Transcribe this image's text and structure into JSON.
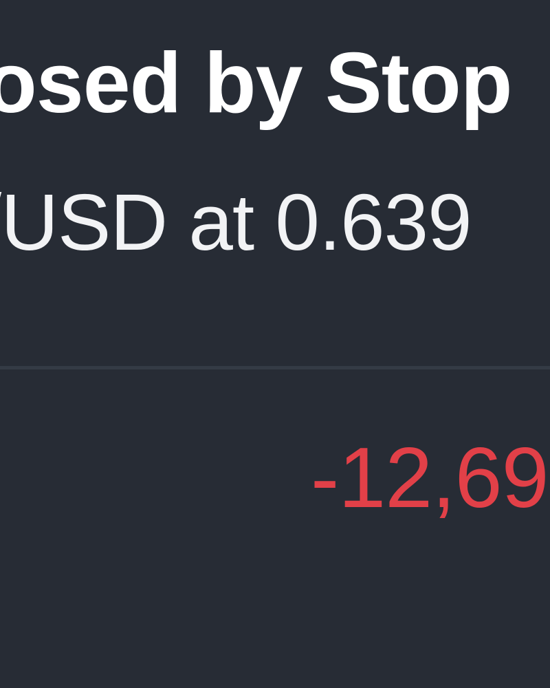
{
  "notification": {
    "title": "osed by Stop",
    "message": "/USD at 0.639",
    "pnl": "-12,69",
    "colors": {
      "background": "#272c35",
      "title": "#ffffff",
      "message": "#f2f3f5",
      "divider": "#343b45",
      "loss": "#e24048"
    }
  }
}
